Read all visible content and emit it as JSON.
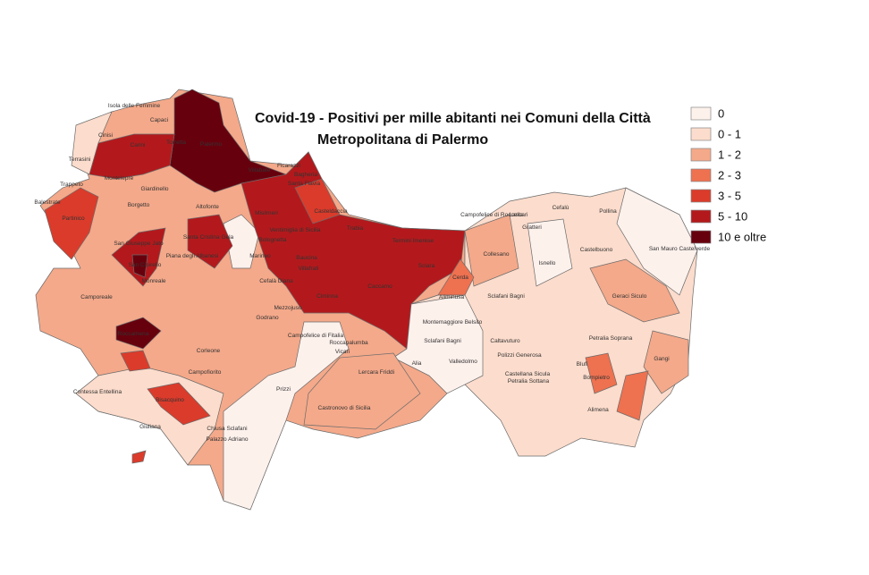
{
  "title": [
    "Covid-19 - Positivi per mille abitanti nei Comuni della Città",
    "Metropolitana di Palermo"
  ],
  "legend": [
    {
      "label": "0",
      "color": "#fdf1ec"
    },
    {
      "label": "0 - 1",
      "color": "#fcdccc"
    },
    {
      "label": "1 - 2",
      "color": "#f4a98a"
    },
    {
      "label": "2 - 3",
      "color": "#ee7150"
    },
    {
      "label": "3 - 5",
      "color": "#db3b2b"
    },
    {
      "label": "5 - 10",
      "color": "#b3191c"
    },
    {
      "label": "10 e oltre",
      "color": "#67000d"
    }
  ],
  "municipalities": [
    "Isola delle Femmine",
    "Capaci",
    "Cinisi",
    "Carini",
    "Torretta",
    "Palermo",
    "Terrasini",
    "Villabate",
    "Ficarazzi",
    "Bagheria",
    "Trappeto",
    "Montelepre",
    "Giardinello",
    "Santa Flavia",
    "Balestrate",
    "Borgetto",
    "Altofonte",
    "Misilmeri",
    "Casteldaccia",
    "Partinico",
    "Campofelice di Roccella",
    "Lascari",
    "Cefalù",
    "Pollina",
    "Gratteri",
    "Trabia",
    "Ventimiglia di Sicilia",
    "Santa Cristina Gela",
    "San Giuseppe Jato",
    "Termini Imerese",
    "Collesano",
    "Castelbuono",
    "San Mauro Castelverde",
    "Piana degli Albanesi",
    "Bolognetta",
    "Baucina",
    "Marineo",
    "Sciara",
    "San Cipirello",
    "Isnello",
    "Villafrati",
    "Cerda",
    "Monreale",
    "Cefalà Diana",
    "Ciminna",
    "Caccamo",
    "Sclafani Bagni",
    "Geraci Siculo",
    "Camporeale",
    "Aliminusa",
    "Mezzojuso",
    "Godrano",
    "Montemaggiore Belsito",
    "Roccamena",
    "Campofelice di Fitalia",
    "Roccapalumba",
    "Sclafani Bagni",
    "Caltavuturo",
    "Petralia Soprana",
    "Corleone",
    "Vicari",
    "Alia",
    "Valledolmo",
    "Polizzi Generosa",
    "Gangi",
    "Blufi",
    "Bompietro",
    "Campofiorito",
    "Lercara Friddi",
    "Castellana Sicula",
    "Petralia Sottana",
    "Contessa Entellina",
    "Bisacquino",
    "Prizzi",
    "Alimena",
    "Castronovo di Sicilia",
    "Giuliana",
    "Chiusa Sclafani",
    "Palazzo Adriano"
  ]
}
